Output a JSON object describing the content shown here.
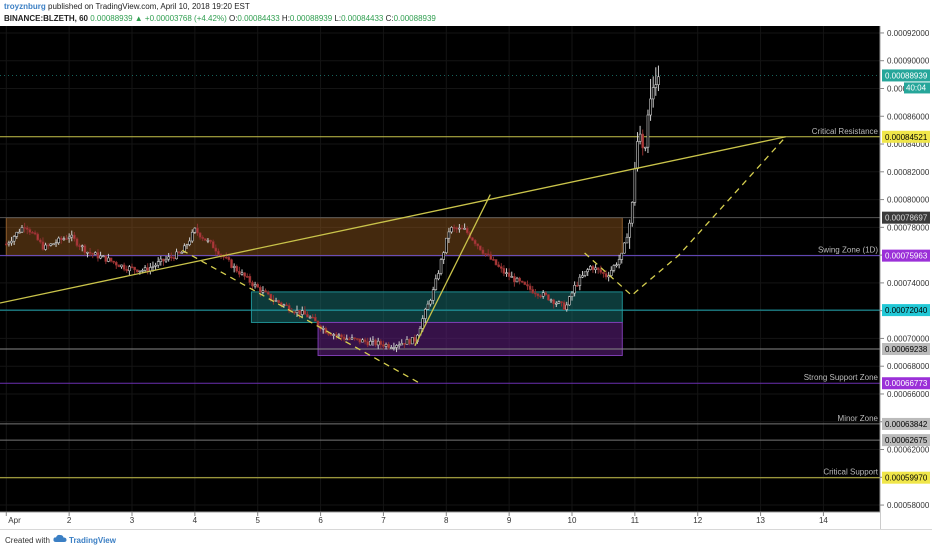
{
  "header": {
    "author": "troyznburg",
    "published_text": " published on TradingView.com, April 10, 2018 19:20 EST",
    "symbol": "BINANCE:BLZETH, 60",
    "last": "0.00088939",
    "change": "▲ +0.00003768 (+4.42%)",
    "o_label": "O:",
    "o_value": "0.00084433",
    "h_label": "H:",
    "h_value": "0.00088939",
    "l_label": "L:",
    "l_value": "0.00084433",
    "c_label": "C:",
    "c_value": "0.00088939"
  },
  "footer": {
    "created": "Created with",
    "brand": "TradingView"
  },
  "chart_data": {
    "type": "candlestick",
    "x_ticks": [
      {
        "label": "Apr",
        "day": 1.0
      },
      {
        "label": "2",
        "day": 2
      },
      {
        "label": "3",
        "day": 3
      },
      {
        "label": "4",
        "day": 4
      },
      {
        "label": "5",
        "day": 5
      },
      {
        "label": "6",
        "day": 6
      },
      {
        "label": "7",
        "day": 7
      },
      {
        "label": "8",
        "day": 8
      },
      {
        "label": "9",
        "day": 9
      },
      {
        "label": "10",
        "day": 10
      },
      {
        "label": "11",
        "day": 11
      },
      {
        "label": "12",
        "day": 12
      },
      {
        "label": "13",
        "day": 13
      },
      {
        "label": "14",
        "day": 14
      }
    ],
    "y_ticks": [
      "0.00092000",
      "0.00090000",
      "0.00088000",
      "0.00086000",
      "0.00084000",
      "0.00082000",
      "0.00080000",
      "0.00078000",
      "0.00076000",
      "0.00074000",
      "0.00072000",
      "0.00070000",
      "0.00068000",
      "0.00066000",
      "0.00064000",
      "0.00062000",
      "0.00060000",
      "0.00058000"
    ],
    "ylim": [
      0.000575,
      0.000925
    ],
    "xlim": [
      0.9,
      14.9
    ],
    "levels": [
      {
        "name": "Critical Resistance",
        "value": 0.00084521,
        "color": "#c6c24a",
        "badge_bg": "#f0e64a",
        "badge_fg": "#000000"
      },
      {
        "name": "",
        "value": 0.00078697,
        "color": "#555555",
        "badge_bg": "#3a3a3a",
        "badge_fg": "#dddddd"
      },
      {
        "name": "Swing Zone (1D)",
        "value": 0.00075963,
        "color": "#6b4ec9",
        "badge_bg": "#9b30d8",
        "badge_fg": "#ffffff"
      },
      {
        "name": "",
        "value": 0.0007204,
        "color": "#1fa7b0",
        "badge_bg": "#22c8d6",
        "badge_fg": "#000000"
      },
      {
        "name": "",
        "value": 0.00069238,
        "color": "#888888",
        "badge_bg": "#bbbbbb",
        "badge_fg": "#000000"
      },
      {
        "name": "Strong Support Zone",
        "value": 0.00066773,
        "color": "#6b2fb0",
        "badge_bg": "#9b30d8",
        "badge_fg": "#ffffff"
      },
      {
        "name": "Minor Zone",
        "value": 0.00063842,
        "color": "#777777",
        "badge_bg": "#bbbbbb",
        "badge_fg": "#000000"
      },
      {
        "name": "",
        "value": 0.00062675,
        "color": "#777777",
        "badge_bg": "#bbbbbb",
        "badge_fg": "#000000"
      },
      {
        "name": "Critical Support",
        "value": 0.0005997,
        "color": "#c6c24a",
        "badge_bg": "#f0e64a",
        "badge_fg": "#000000"
      }
    ],
    "level_labels": [
      "0.00084521",
      "0.00078697",
      "0.00075963",
      "0.00072040",
      "0.00069238",
      "0.00066773",
      "0.00063842",
      "0.00062675",
      "0.00059970"
    ],
    "last_price": {
      "value": 0.00088939,
      "label": "0.00088939",
      "countdown": "40:04",
      "color": "#26a69a"
    },
    "zones": [
      {
        "x1": 1.0,
        "x2": 10.8,
        "y1": 0.00075963,
        "y2": 0.00078697,
        "fill": "rgba(150,90,30,0.45)",
        "stroke": "#8a5a2a"
      },
      {
        "x1": 4.9,
        "x2": 10.8,
        "y1": 0.0007115,
        "y2": 0.0007335,
        "fill": "rgba(25,115,115,0.50)",
        "stroke": "#1f8f92"
      },
      {
        "x1": 5.96,
        "x2": 10.8,
        "y1": 0.0006877,
        "y2": 0.0007115,
        "fill": "rgba(90,30,120,0.60)",
        "stroke": "#7c3cb0"
      }
    ],
    "trendlines": [
      {
        "points": [
          [
            0.9,
            0.0007255
          ],
          [
            13.4,
            0.0008452
          ]
        ],
        "style": "solid",
        "color": "#c9c34a"
      },
      {
        "points": [
          [
            7.5,
            0.0006947
          ],
          [
            8.7,
            0.0008036
          ]
        ],
        "style": "solid",
        "color": "#c9c34a"
      },
      {
        "points": [
          [
            3.8,
            0.0007635
          ],
          [
            7.55,
            0.0006685
          ]
        ],
        "style": "dashed",
        "color": "#d6cf4f"
      },
      {
        "points": [
          [
            10.2,
            0.0007615
          ],
          [
            10.95,
            0.000731
          ],
          [
            11.7,
            0.00076
          ],
          [
            13.4,
            0.0008452
          ]
        ],
        "style": "dashed",
        "color": "#d6cf4f"
      }
    ],
    "price_segments": [
      [
        1.0,
        0.000768
      ],
      [
        1.3,
        0.000782
      ],
      [
        1.6,
        0.000765
      ],
      [
        2.0,
        0.000774
      ],
      [
        2.3,
        0.000762
      ],
      [
        2.6,
        0.000757
      ],
      [
        2.9,
        0.000751
      ],
      [
        3.2,
        0.000749
      ],
      [
        3.5,
        0.000756
      ],
      [
        3.8,
        0.000762
      ],
      [
        4.0,
        0.000778
      ],
      [
        4.3,
        0.000766
      ],
      [
        4.6,
        0.000752
      ],
      [
        4.9,
        0.00074
      ],
      [
        5.2,
        0.000729
      ],
      [
        5.5,
        0.000722
      ],
      [
        5.8,
        0.000716
      ],
      [
        6.1,
        0.000705
      ],
      [
        6.4,
        0.0007
      ],
      [
        6.8,
        0.000697
      ],
      [
        7.1,
        0.000695
      ],
      [
        7.5,
        0.000699
      ],
      [
        7.8,
        0.000735
      ],
      [
        8.05,
        0.000779
      ],
      [
        8.3,
        0.000778
      ],
      [
        8.6,
        0.000762
      ],
      [
        8.9,
        0.000748
      ],
      [
        9.3,
        0.000736
      ],
      [
        9.6,
        0.00073
      ],
      [
        9.9,
        0.000722
      ],
      [
        10.05,
        0.000738
      ],
      [
        10.3,
        0.000752
      ],
      [
        10.55,
        0.000745
      ],
      [
        10.8,
        0.00076
      ],
      [
        10.95,
        0.00079
      ],
      [
        11.05,
        0.000852
      ],
      [
        11.15,
        0.000836
      ],
      [
        11.25,
        0.00087
      ],
      [
        11.35,
        0.000883
      ],
      [
        11.4,
        0.000889
      ]
    ]
  }
}
